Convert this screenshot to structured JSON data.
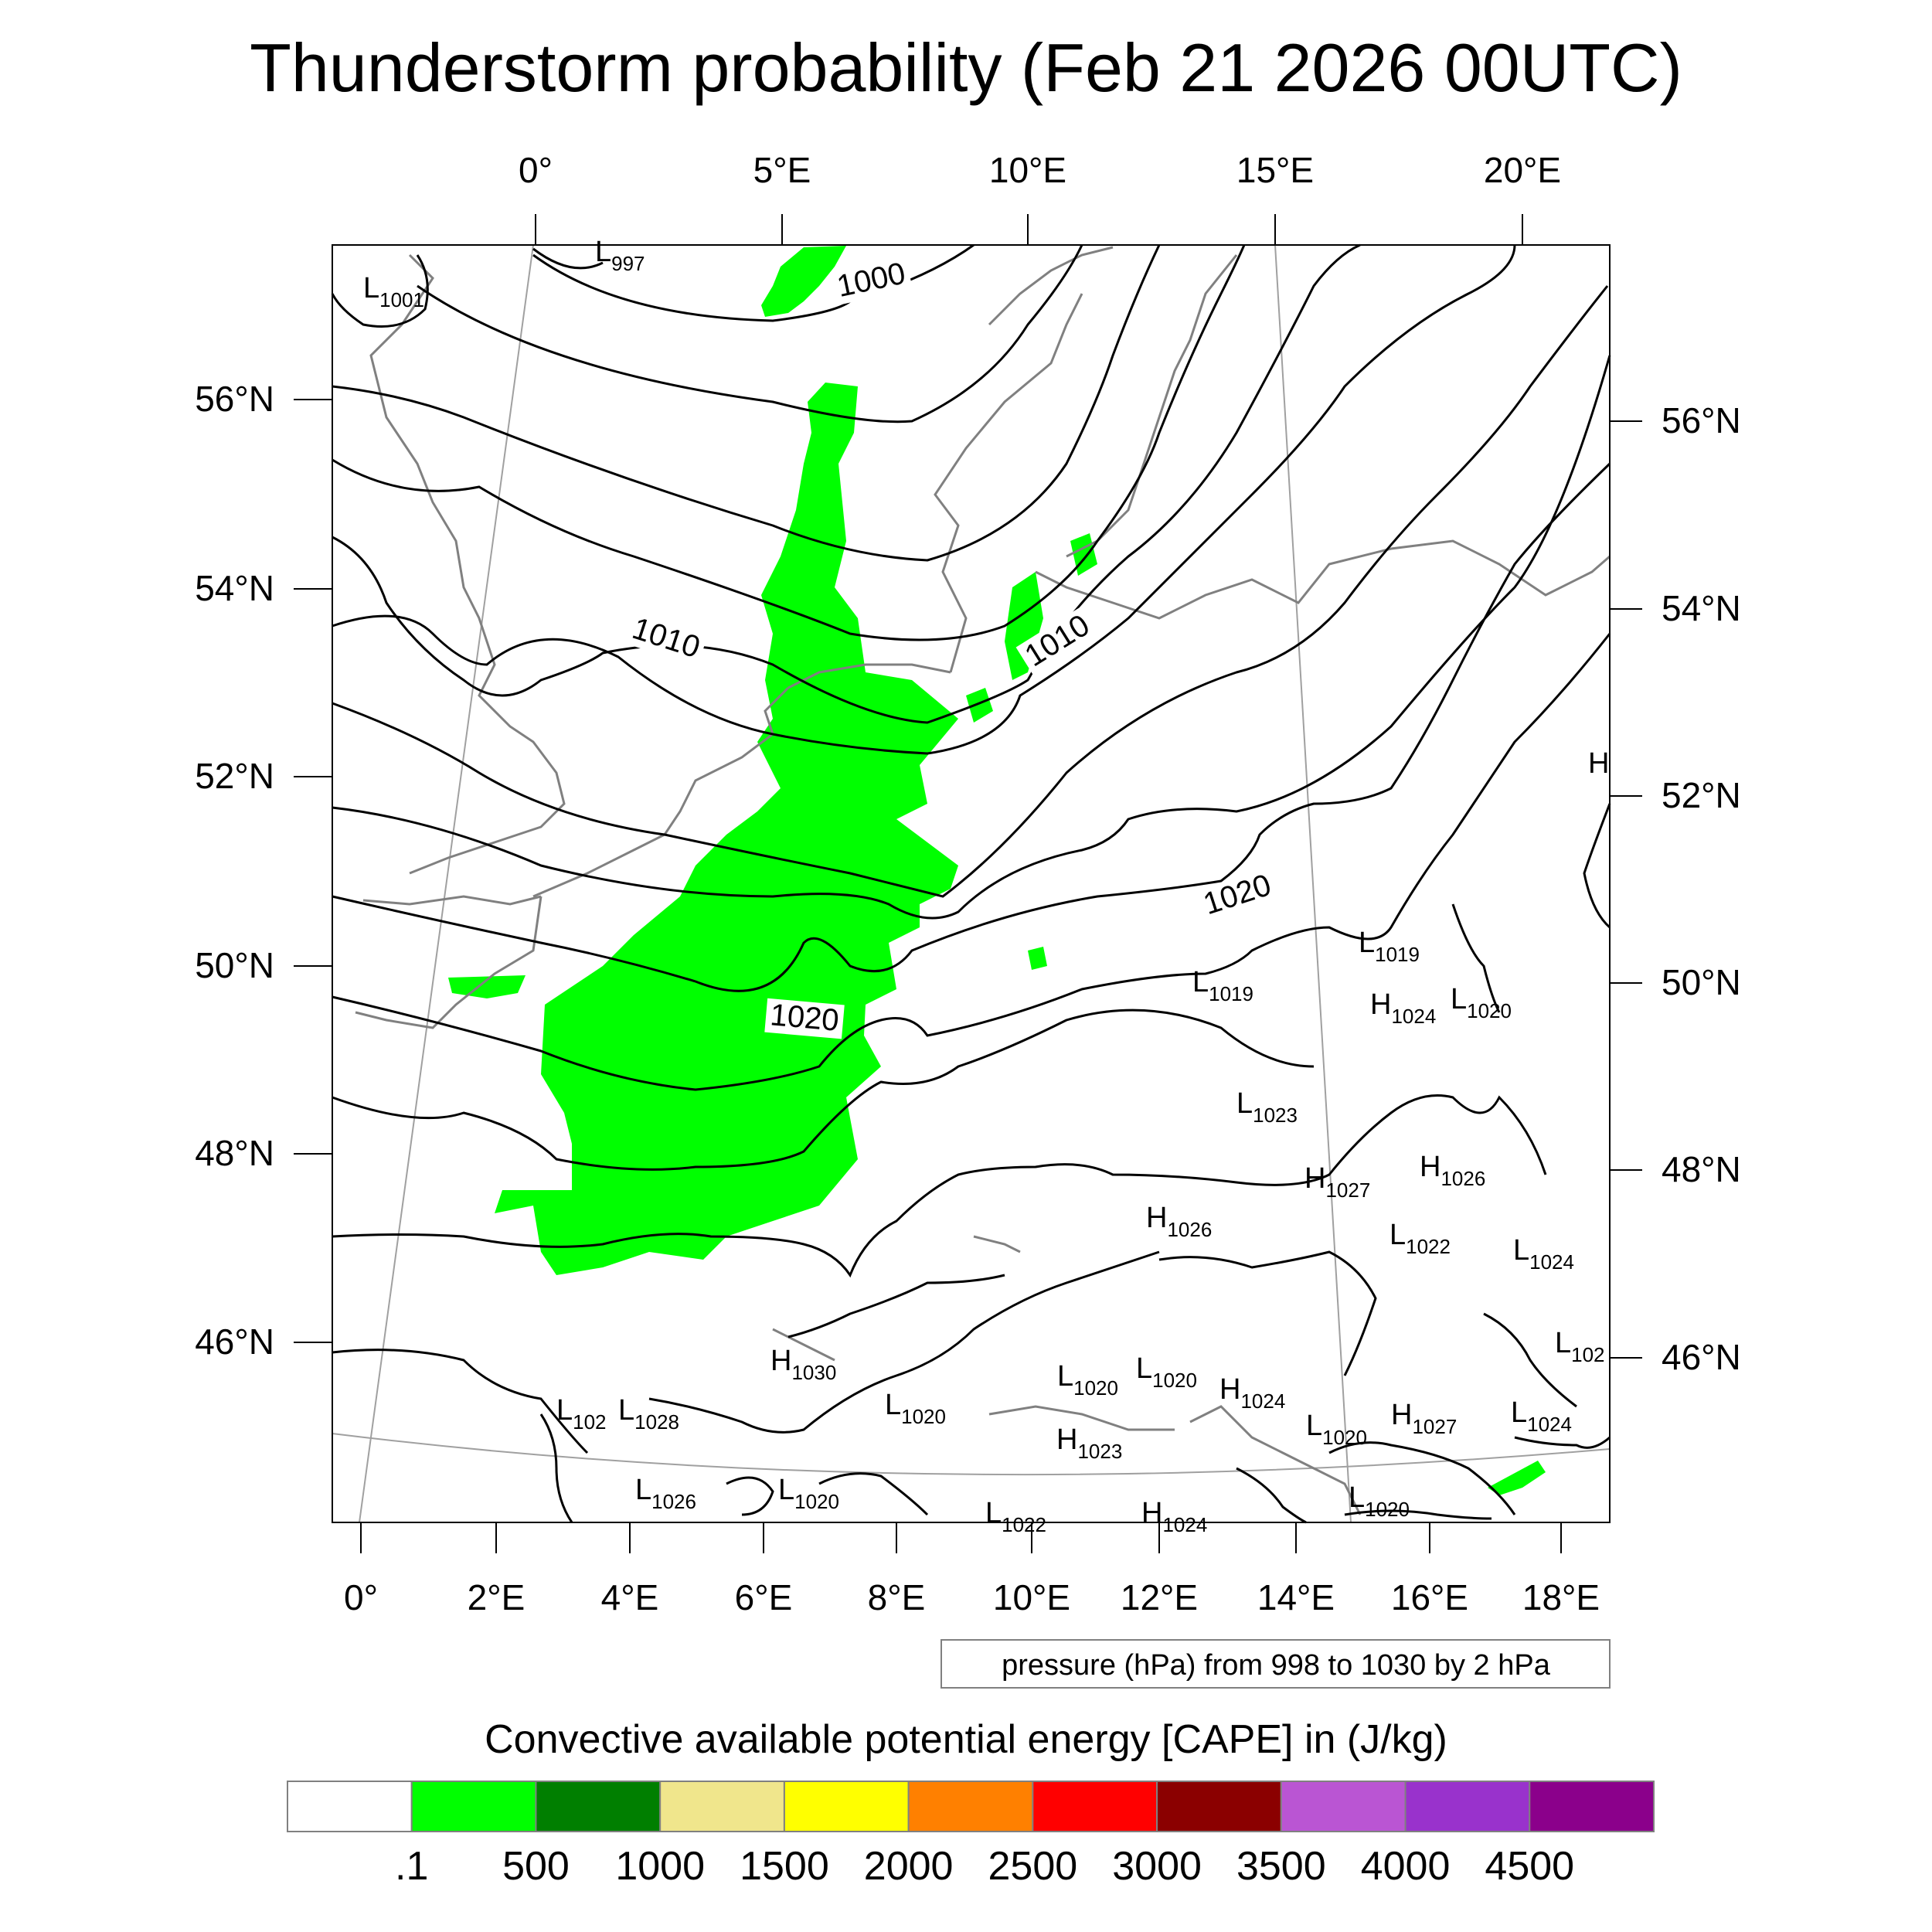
{
  "title": "Thunderstorm probability (Feb 21 2026 00UTC)",
  "colors": {
    "cape_green": "#00ff00",
    "coast": "#808080",
    "isobar": "#000000",
    "graticule": "#a0a0a0"
  },
  "top_lon_labels": [
    "0°",
    "5°E",
    "10°E",
    "15°E",
    "20°E"
  ],
  "bottom_lon_labels": [
    "0°",
    "2°E",
    "4°E",
    "6°E",
    "8°E",
    "10°E",
    "12°E",
    "14°E",
    "16°E",
    "18°E"
  ],
  "left_lat_labels": [
    "56°N",
    "54°N",
    "52°N",
    "50°N",
    "48°N",
    "46°N"
  ],
  "right_lat_labels": [
    "56°N",
    "54°N",
    "52°N",
    "50°N",
    "48°N",
    "46°N"
  ],
  "isobar_labels": [
    "1000",
    "1010",
    "1010",
    "1020",
    "1020"
  ],
  "pressure_centers": [
    {
      "type": "L",
      "value": "997"
    },
    {
      "type": "L",
      "value": "1001"
    },
    {
      "type": "L",
      "value": "1019"
    },
    {
      "type": "L",
      "value": "1019"
    },
    {
      "type": "H",
      "value": "1024"
    },
    {
      "type": "L",
      "value": "1020"
    },
    {
      "type": "L",
      "value": "1023"
    },
    {
      "type": "H",
      "value": "1027"
    },
    {
      "type": "H",
      "value": "1026"
    },
    {
      "type": "H",
      "value": "1026"
    },
    {
      "type": "L",
      "value": "1022"
    },
    {
      "type": "L",
      "value": "1024"
    },
    {
      "type": "L",
      "value": "102"
    },
    {
      "type": "H",
      "value": "1030"
    },
    {
      "type": "L",
      "value": "102"
    },
    {
      "type": "L",
      "value": "1028"
    },
    {
      "type": "L",
      "value": "1020"
    },
    {
      "type": "L",
      "value": "1020"
    },
    {
      "type": "L",
      "value": "1020"
    },
    {
      "type": "H",
      "value": "1024"
    },
    {
      "type": "H",
      "value": "1023"
    },
    {
      "type": "L",
      "value": "1020"
    },
    {
      "type": "H",
      "value": "1027"
    },
    {
      "type": "L",
      "value": "1024"
    },
    {
      "type": "L",
      "value": "1026"
    },
    {
      "type": "L",
      "value": "1020"
    },
    {
      "type": "L",
      "value": "1022"
    },
    {
      "type": "H",
      "value": "1024"
    },
    {
      "type": "L",
      "value": "1020"
    },
    {
      "type": "H",
      "value": ""
    }
  ],
  "contour_note": "pressure (hPa) from 998 to 1030 by 2 hPa",
  "colorbar": {
    "title": "Convective available potential energy [CAPE] in (J/kg)",
    "colors": [
      "#ffffff",
      "#00ff00",
      "#007f00",
      "#f0e68c",
      "#ffff00",
      "#ff8000",
      "#ff0000",
      "#8b0000",
      "#ba55d3",
      "#9932cc",
      "#8b008b"
    ],
    "labels": [
      ".1",
      "500",
      "1000",
      "1500",
      "2000",
      "2500",
      "3000",
      "3500",
      "4000",
      "4500"
    ]
  }
}
